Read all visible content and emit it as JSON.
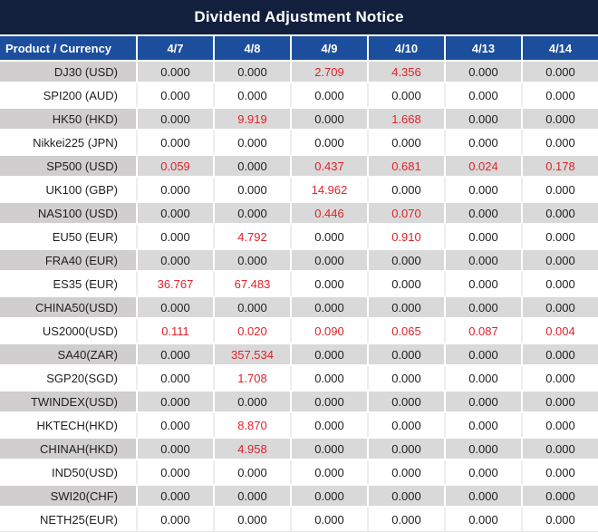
{
  "title": "Dividend Adjustment Notice",
  "colors": {
    "title_bar_bg": "#12203e",
    "header_bg": "#1c4e9e",
    "header_text": "#ffffff",
    "gray_row_label_bg": "#d0cece",
    "gray_row_value_bg": "#d9d9d9",
    "white_row_bg": "#ffffff",
    "value_text": "#212121",
    "red_text": "#e0222a",
    "separator_white": "#ffffff",
    "separator_light": "#ededed"
  },
  "table": {
    "product_header": "Product / Currency",
    "date_headers": [
      "4/7",
      "4/8",
      "4/9",
      "4/10",
      "4/13",
      "4/14"
    ],
    "rows": [
      {
        "product": "DJ30 (USD)",
        "values": [
          "0.000",
          "0.000",
          "2.709",
          "4.356",
          "0.000",
          "0.000"
        ],
        "red": [
          false,
          false,
          true,
          true,
          false,
          false
        ]
      },
      {
        "product": "SPI200 (AUD)",
        "values": [
          "0.000",
          "0.000",
          "0.000",
          "0.000",
          "0.000",
          "0.000"
        ],
        "red": [
          false,
          false,
          false,
          false,
          false,
          false
        ]
      },
      {
        "product": "HK50 (HKD)",
        "values": [
          "0.000",
          "9.919",
          "0.000",
          "1.668",
          "0.000",
          "0.000"
        ],
        "red": [
          false,
          true,
          false,
          true,
          false,
          false
        ]
      },
      {
        "product": "Nikkei225 (JPN)",
        "values": [
          "0.000",
          "0.000",
          "0.000",
          "0.000",
          "0.000",
          "0.000"
        ],
        "red": [
          false,
          false,
          false,
          false,
          false,
          false
        ]
      },
      {
        "product": "SP500 (USD)",
        "values": [
          "0.059",
          "0.000",
          "0.437",
          "0.681",
          "0.024",
          "0.178"
        ],
        "red": [
          true,
          false,
          true,
          true,
          true,
          true
        ]
      },
      {
        "product": "UK100 (GBP)",
        "values": [
          "0.000",
          "0.000",
          "14.962",
          "0.000",
          "0.000",
          "0.000"
        ],
        "red": [
          false,
          false,
          true,
          false,
          false,
          false
        ]
      },
      {
        "product": "NAS100 (USD)",
        "values": [
          "0.000",
          "0.000",
          "0.446",
          "0.070",
          "0.000",
          "0.000"
        ],
        "red": [
          false,
          false,
          true,
          true,
          false,
          false
        ]
      },
      {
        "product": "EU50 (EUR)",
        "values": [
          "0.000",
          "4.792",
          "0.000",
          "0.910",
          "0.000",
          "0.000"
        ],
        "red": [
          false,
          true,
          false,
          true,
          false,
          false
        ]
      },
      {
        "product": "FRA40 (EUR)",
        "values": [
          "0.000",
          "0.000",
          "0.000",
          "0.000",
          "0.000",
          "0.000"
        ],
        "red": [
          false,
          false,
          false,
          false,
          false,
          false
        ]
      },
      {
        "product": "ES35 (EUR)",
        "values": [
          "36.767",
          "67.483",
          "0.000",
          "0.000",
          "0.000",
          "0.000"
        ],
        "red": [
          true,
          true,
          false,
          false,
          false,
          false
        ]
      },
      {
        "product": "CHINA50(USD)",
        "values": [
          "0.000",
          "0.000",
          "0.000",
          "0.000",
          "0.000",
          "0.000"
        ],
        "red": [
          false,
          false,
          false,
          false,
          false,
          false
        ]
      },
      {
        "product": "US2000(USD)",
        "values": [
          "0.111",
          "0.020",
          "0.090",
          "0.065",
          "0.087",
          "0.004"
        ],
        "red": [
          true,
          true,
          true,
          true,
          true,
          true
        ]
      },
      {
        "product": "SA40(ZAR)",
        "values": [
          "0.000",
          "357.534",
          "0.000",
          "0.000",
          "0.000",
          "0.000"
        ],
        "red": [
          false,
          true,
          false,
          false,
          false,
          false
        ]
      },
      {
        "product": "SGP20(SGD)",
        "values": [
          "0.000",
          "1.708",
          "0.000",
          "0.000",
          "0.000",
          "0.000"
        ],
        "red": [
          false,
          true,
          false,
          false,
          false,
          false
        ]
      },
      {
        "product": "TWINDEX(USD)",
        "values": [
          "0.000",
          "0.000",
          "0.000",
          "0.000",
          "0.000",
          "0.000"
        ],
        "red": [
          false,
          false,
          false,
          false,
          false,
          false
        ]
      },
      {
        "product": "HKTECH(HKD)",
        "values": [
          "0.000",
          "8.870",
          "0.000",
          "0.000",
          "0.000",
          "0.000"
        ],
        "red": [
          false,
          true,
          false,
          false,
          false,
          false
        ]
      },
      {
        "product": "CHINAH(HKD)",
        "values": [
          "0.000",
          "4.958",
          "0.000",
          "0.000",
          "0.000",
          "0.000"
        ],
        "red": [
          false,
          true,
          false,
          false,
          false,
          false
        ]
      },
      {
        "product": "IND50(USD)",
        "values": [
          "0.000",
          "0.000",
          "0.000",
          "0.000",
          "0.000",
          "0.000"
        ],
        "red": [
          false,
          false,
          false,
          false,
          false,
          false
        ]
      },
      {
        "product": "SWI20(CHF)",
        "values": [
          "0.000",
          "0.000",
          "0.000",
          "0.000",
          "0.000",
          "0.000"
        ],
        "red": [
          false,
          false,
          false,
          false,
          false,
          false
        ]
      },
      {
        "product": "NETH25(EUR)",
        "values": [
          "0.000",
          "0.000",
          "0.000",
          "0.000",
          "0.000",
          "0.000"
        ],
        "red": [
          false,
          false,
          false,
          false,
          false,
          false
        ]
      }
    ]
  }
}
